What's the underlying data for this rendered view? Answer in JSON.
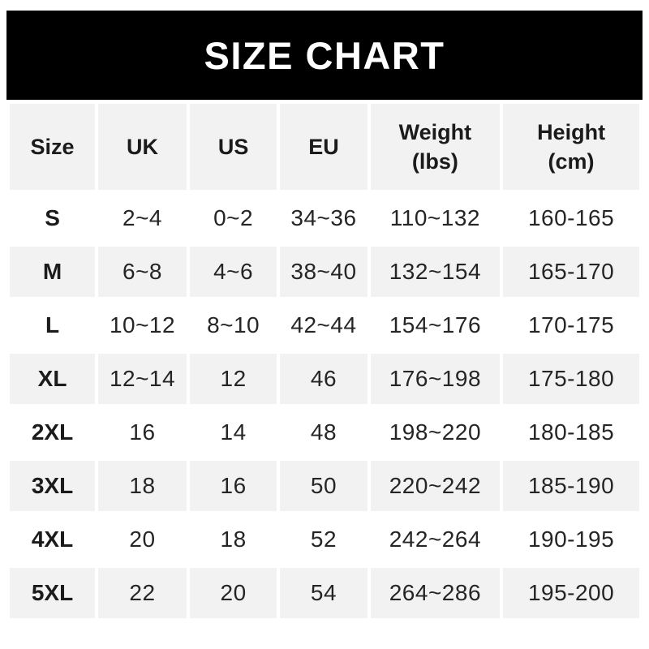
{
  "banner": {
    "title": "SIZE CHART",
    "bg_color": "#000000",
    "text_color": "#ffffff"
  },
  "table": {
    "stripe_color": "#f2f2f2",
    "columns": [
      "Size",
      "UK",
      "US",
      "EU",
      "Weight (lbs)",
      "Height (cm)"
    ],
    "rows": [
      [
        "S",
        "2~4",
        "0~2",
        "34~36",
        "110~132",
        "160-165"
      ],
      [
        "M",
        "6~8",
        "4~6",
        "38~40",
        "132~154",
        "165-170"
      ],
      [
        "L",
        "10~12",
        "8~10",
        "42~44",
        "154~176",
        "170-175"
      ],
      [
        "XL",
        "12~14",
        "12",
        "46",
        "176~198",
        "175-180"
      ],
      [
        "2XL",
        "16",
        "14",
        "48",
        "198~220",
        "180-185"
      ],
      [
        "3XL",
        "18",
        "16",
        "50",
        "220~242",
        "185-190"
      ],
      [
        "4XL",
        "20",
        "18",
        "52",
        "242~264",
        "190-195"
      ],
      [
        "5XL",
        "22",
        "20",
        "54",
        "264~286",
        "195-200"
      ]
    ]
  },
  "chart_data": {
    "type": "table",
    "title": "SIZE CHART",
    "columns": [
      "Size",
      "UK",
      "US",
      "EU",
      "Weight (lbs)",
      "Height (cm)"
    ],
    "rows": [
      [
        "S",
        "2~4",
        "0~2",
        "34~36",
        "110~132",
        "160-165"
      ],
      [
        "M",
        "6~8",
        "4~6",
        "38~40",
        "132~154",
        "165-170"
      ],
      [
        "L",
        "10~12",
        "8~10",
        "42~44",
        "154~176",
        "170-175"
      ],
      [
        "XL",
        "12~14",
        "12",
        "46",
        "176~198",
        "175-180"
      ],
      [
        "2XL",
        "16",
        "14",
        "48",
        "198~220",
        "180-185"
      ],
      [
        "3XL",
        "18",
        "16",
        "50",
        "220~242",
        "185-190"
      ],
      [
        "4XL",
        "20",
        "18",
        "52",
        "242~264",
        "190-195"
      ],
      [
        "5XL",
        "22",
        "20",
        "54",
        "264~286",
        "195-200"
      ]
    ]
  }
}
